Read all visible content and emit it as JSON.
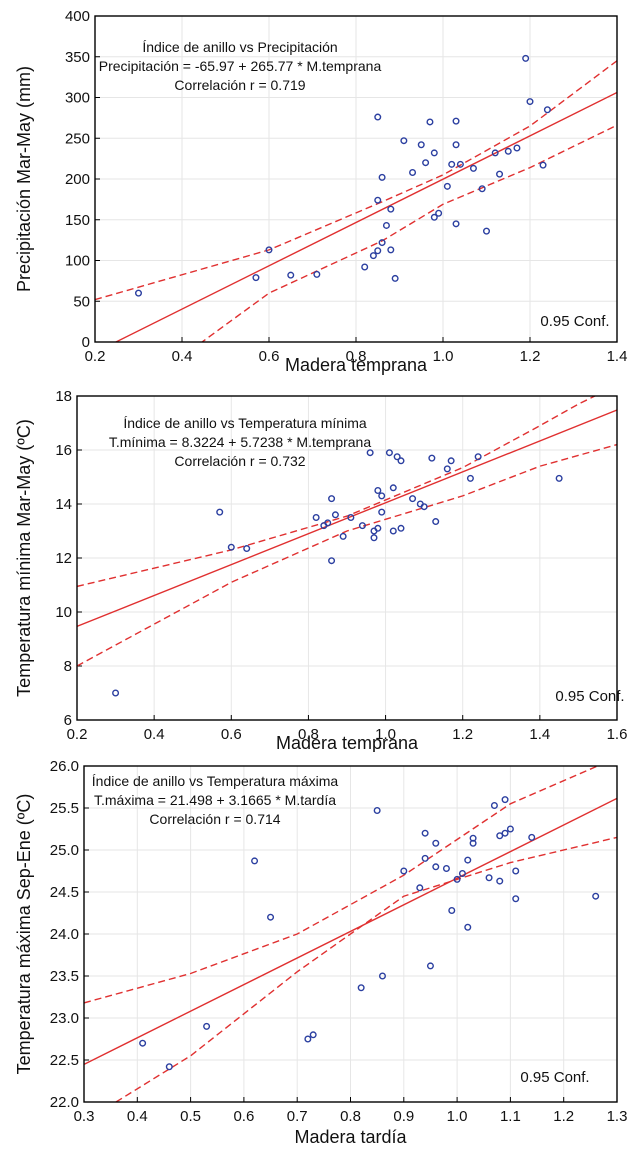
{
  "chart_data": [
    {
      "type": "scatter",
      "title": "Índice de anillo vs Precipitación",
      "equation": "Precipitación = -65.97 + 265.77 * M.temprana",
      "correlation": "Correlación r = 0.719",
      "confidence_label": "0.95 Conf.",
      "xlabel": "Madera temprana",
      "ylabel": "Precipitación Mar-May (mm)",
      "xlim": [
        0.2,
        1.4
      ],
      "ylim": [
        0,
        400
      ],
      "xticks": [
        "0.2",
        "0.4",
        "0.6",
        "0.8",
        "1.0",
        "1.2",
        "1.4"
      ],
      "yticks": [
        "0",
        "50",
        "100",
        "150",
        "200",
        "250",
        "300",
        "350",
        "400"
      ],
      "grid": true,
      "fit": {
        "intercept": -65.97,
        "slope": 265.77
      },
      "conf_upper": [
        [
          0.2,
          52
        ],
        [
          0.6,
          113
        ],
        [
          0.86,
          172
        ],
        [
          1.0,
          205
        ],
        [
          1.2,
          265
        ],
        [
          1.4,
          345
        ]
      ],
      "conf_lower": [
        [
          0.4,
          -18
        ],
        [
          0.6,
          60
        ],
        [
          0.86,
          124
        ],
        [
          1.0,
          169
        ],
        [
          1.2,
          214
        ],
        [
          1.4,
          266
        ]
      ],
      "colors": {
        "points": "#2b3fa0",
        "line": "#e03030"
      },
      "points": [
        [
          0.3,
          60
        ],
        [
          0.57,
          79
        ],
        [
          0.6,
          113
        ],
        [
          0.65,
          82
        ],
        [
          0.71,
          83
        ],
        [
          0.82,
          92
        ],
        [
          0.84,
          106
        ],
        [
          0.85,
          112
        ],
        [
          0.86,
          122
        ],
        [
          0.85,
          174
        ],
        [
          0.86,
          202
        ],
        [
          0.85,
          276
        ],
        [
          0.87,
          143
        ],
        [
          0.88,
          163
        ],
        [
          0.88,
          113
        ],
        [
          0.89,
          78
        ],
        [
          0.91,
          247
        ],
        [
          0.93,
          208
        ],
        [
          0.95,
          242
        ],
        [
          0.96,
          220
        ],
        [
          0.97,
          270
        ],
        [
          0.98,
          232
        ],
        [
          0.98,
          153
        ],
        [
          0.99,
          158
        ],
        [
          1.01,
          191
        ],
        [
          1.02,
          218
        ],
        [
          1.03,
          242
        ],
        [
          1.03,
          271
        ],
        [
          1.03,
          145
        ],
        [
          1.04,
          218
        ],
        [
          1.07,
          213
        ],
        [
          1.09,
          188
        ],
        [
          1.1,
          136
        ],
        [
          1.12,
          232
        ],
        [
          1.13,
          206
        ],
        [
          1.15,
          234
        ],
        [
          1.17,
          238
        ],
        [
          1.19,
          348
        ],
        [
          1.2,
          295
        ],
        [
          1.23,
          217
        ],
        [
          1.24,
          285
        ]
      ]
    },
    {
      "type": "scatter",
      "title": "Índice de anillo vs Temperatura mínima",
      "equation": "T.mínima = 8.3224 + 5.7238 * M.temprana",
      "correlation": "Correlación r = 0.732",
      "confidence_label": "0.95 Conf.",
      "xlabel": "Madera temprana",
      "ylabel": "Temperatura mínima Mar-May   (ºC)",
      "xlim": [
        0.2,
        1.6
      ],
      "ylim": [
        6,
        18
      ],
      "xticks": [
        "0.2",
        "0.4",
        "0.6",
        "0.8",
        "1.0",
        "1.2",
        "1.4",
        "1.6"
      ],
      "yticks": [
        "6",
        "8",
        "10",
        "12",
        "14",
        "16",
        "18"
      ],
      "grid": true,
      "fit": {
        "intercept": 8.3224,
        "slope": 5.7238
      },
      "conf_upper": [
        [
          0.2,
          10.95
        ],
        [
          0.6,
          12.3
        ],
        [
          0.9,
          13.55
        ],
        [
          1.2,
          15.35
        ],
        [
          1.4,
          16.9
        ],
        [
          1.5,
          17.7
        ],
        [
          1.6,
          18.4
        ]
      ],
      "conf_lower": [
        [
          0.2,
          8.0
        ],
        [
          0.6,
          11.1
        ],
        [
          0.9,
          13.0
        ],
        [
          1.2,
          14.3
        ],
        [
          1.4,
          15.4
        ],
        [
          1.6,
          16.2
        ]
      ],
      "colors": {
        "points": "#2b3fa0",
        "line": "#e03030"
      },
      "points": [
        [
          0.3,
          7.0
        ],
        [
          0.57,
          13.7
        ],
        [
          0.6,
          12.4
        ],
        [
          0.64,
          12.35
        ],
        [
          0.82,
          13.5
        ],
        [
          0.84,
          13.2
        ],
        [
          0.85,
          13.3
        ],
        [
          0.86,
          14.2
        ],
        [
          0.86,
          11.9
        ],
        [
          0.87,
          13.6
        ],
        [
          0.89,
          12.8
        ],
        [
          0.91,
          13.5
        ],
        [
          0.94,
          13.2
        ],
        [
          0.96,
          15.9
        ],
        [
          0.97,
          13.0
        ],
        [
          0.97,
          12.75
        ],
        [
          0.98,
          14.5
        ],
        [
          0.98,
          13.1
        ],
        [
          0.99,
          13.7
        ],
        [
          0.99,
          14.3
        ],
        [
          1.01,
          15.9
        ],
        [
          1.02,
          14.6
        ],
        [
          1.02,
          13.0
        ],
        [
          1.03,
          15.75
        ],
        [
          1.04,
          15.6
        ],
        [
          1.04,
          13.1
        ],
        [
          1.07,
          14.2
        ],
        [
          1.09,
          14.0
        ],
        [
          1.1,
          13.9
        ],
        [
          1.12,
          15.7
        ],
        [
          1.13,
          13.35
        ],
        [
          1.16,
          15.3
        ],
        [
          1.17,
          15.6
        ],
        [
          1.22,
          14.95
        ],
        [
          1.24,
          15.75
        ],
        [
          1.45,
          14.95
        ]
      ]
    },
    {
      "type": "scatter",
      "title": "Índice de anillo vs Temperatura máxima",
      "equation": "T.máxima = 21.498 + 3.1665 * M.tardía",
      "correlation": "Correlación r = 0.714",
      "confidence_label": "0.95 Conf.",
      "xlabel": "Madera tardía",
      "ylabel": "Temperatura máxima Sep-Ene   (ºC)",
      "xlim": [
        0.3,
        1.3
      ],
      "ylim": [
        22.0,
        26.0
      ],
      "xticks": [
        "0.3",
        "0.4",
        "0.5",
        "0.6",
        "0.7",
        "0.8",
        "0.9",
        "1.0",
        "1.1",
        "1.2",
        "1.3"
      ],
      "yticks": [
        "22.0",
        "22.5",
        "23.0",
        "23.5",
        "24.0",
        "24.5",
        "25.0",
        "25.5",
        "26.0"
      ],
      "grid": true,
      "fit": {
        "intercept": 21.498,
        "slope": 3.1665
      },
      "conf_upper": [
        [
          0.3,
          23.18
        ],
        [
          0.5,
          23.53
        ],
        [
          0.7,
          24.0
        ],
        [
          0.9,
          24.7
        ],
        [
          1.1,
          25.55
        ],
        [
          1.3,
          26.1
        ]
      ],
      "conf_lower": [
        [
          0.36,
          22.0
        ],
        [
          0.5,
          22.55
        ],
        [
          0.7,
          23.55
        ],
        [
          0.9,
          24.45
        ],
        [
          1.1,
          24.85
        ],
        [
          1.3,
          25.15
        ]
      ],
      "colors": {
        "points": "#2b3fa0",
        "line": "#e03030"
      },
      "points": [
        [
          0.41,
          22.7
        ],
        [
          0.46,
          22.42
        ],
        [
          0.53,
          22.9
        ],
        [
          0.62,
          24.87
        ],
        [
          0.65,
          24.2
        ],
        [
          0.72,
          22.75
        ],
        [
          0.73,
          22.8
        ],
        [
          0.82,
          23.36
        ],
        [
          0.85,
          25.47
        ],
        [
          0.86,
          23.5
        ],
        [
          0.9,
          24.75
        ],
        [
          0.93,
          24.55
        ],
        [
          0.94,
          25.2
        ],
        [
          0.94,
          24.9
        ],
        [
          0.95,
          23.62
        ],
        [
          0.96,
          25.08
        ],
        [
          0.96,
          24.8
        ],
        [
          0.98,
          24.78
        ],
        [
          0.99,
          24.28
        ],
        [
          1.0,
          24.65
        ],
        [
          1.01,
          24.72
        ],
        [
          1.02,
          24.08
        ],
        [
          1.02,
          24.88
        ],
        [
          1.03,
          25.08
        ],
        [
          1.03,
          25.14
        ],
        [
          1.06,
          24.67
        ],
        [
          1.07,
          25.53
        ],
        [
          1.08,
          25.17
        ],
        [
          1.08,
          24.63
        ],
        [
          1.09,
          25.6
        ],
        [
          1.09,
          25.2
        ],
        [
          1.1,
          25.25
        ],
        [
          1.11,
          24.42
        ],
        [
          1.11,
          24.75
        ],
        [
          1.14,
          25.15
        ],
        [
          1.26,
          24.45
        ]
      ]
    }
  ]
}
